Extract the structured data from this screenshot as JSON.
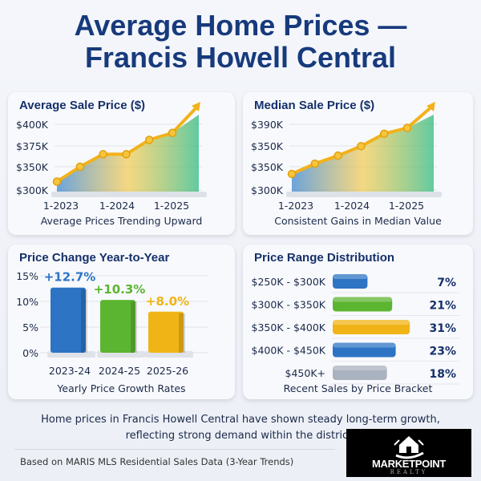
{
  "header": {
    "title_line1": "Average Home Prices —",
    "title_line2": "Francis Howell Central"
  },
  "chart_data": [
    {
      "type": "line",
      "title": "Average Sale Price ($)",
      "subtitle": "Average Prices Trending Upward",
      "y_ticks": [
        "$400K",
        "$375K",
        "$350K",
        "$300K"
      ],
      "y_tick_values": [
        400,
        375,
        350,
        300
      ],
      "x_ticks": [
        "1-2023",
        "1-2024",
        "1-2025"
      ],
      "values": [
        318,
        350,
        365,
        365,
        382,
        390
      ],
      "trend": "upward arrow",
      "color": "#f2b21b"
    },
    {
      "type": "line",
      "title": "Median Sale Price ($)",
      "subtitle": "Consistent Gains in Median Value",
      "y_ticks": [
        "$390K",
        "$350K",
        "$350K",
        "$300K"
      ],
      "x_ticks": [
        "1-2023",
        "1-2024",
        "1-2025"
      ],
      "values": [
        322,
        336,
        347,
        360,
        377,
        385
      ],
      "ylim": [
        300,
        390
      ],
      "trend": "upward arrow",
      "color": "#f2b21b"
    },
    {
      "type": "bar",
      "title": "Price Change Year-to-Year",
      "subtitle": "Yearly Price Growth Rates",
      "y_ticks": [
        "15%",
        "10%",
        "5%",
        "0%"
      ],
      "ylim": [
        0,
        15
      ],
      "categories": [
        "2023-24",
        "2024-25",
        "2025-26"
      ],
      "values": [
        12.7,
        10.3,
        8.0
      ],
      "labels": [
        "+12.7%",
        "+10.3%",
        "+8.0%"
      ],
      "colors": [
        "#2d74c4",
        "#5cb531",
        "#f0b416"
      ]
    },
    {
      "type": "bar",
      "orientation": "horizontal",
      "title": "Price Range Distribution",
      "subtitle": "Recent Sales by Price Bracket",
      "categories": [
        "$250K - $300K",
        "$300K - $350K",
        "$350K - $400K",
        "$400K - $450K",
        "$450K+"
      ],
      "values": [
        7,
        21,
        31,
        23,
        18
      ],
      "labels": [
        "7%",
        "21%",
        "31%",
        "23%",
        "18%"
      ],
      "colors": [
        "#2d74c4",
        "#5cb531",
        "#f0b416",
        "#2d74c4",
        "#a9b2bf"
      ]
    }
  ],
  "footer": {
    "summary": "Home prices in Francis Howell Central have shown steady long-term growth, reflecting strong demand within the district.",
    "source": "Based on MARIS MLS Residential Sales Data  (3-Year Trends)"
  },
  "logo": {
    "name": "MARKETPOINT",
    "sub": "REALTY"
  }
}
